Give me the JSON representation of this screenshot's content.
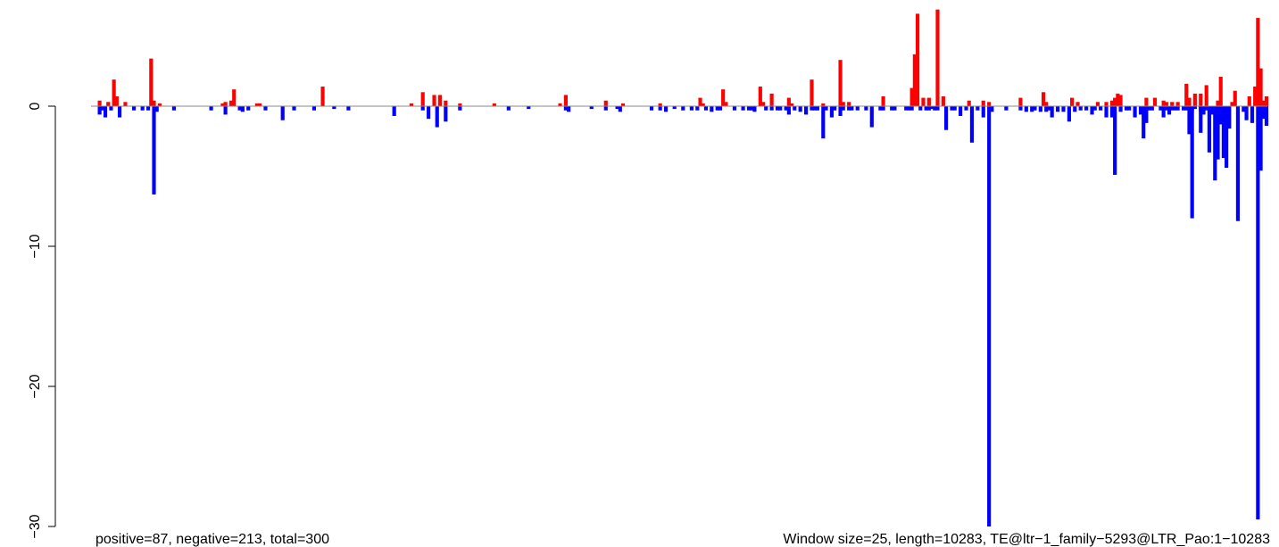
{
  "chart_data": {
    "type": "bar",
    "xlabel": "",
    "ylabel": "",
    "ylim": [
      -30,
      7
    ],
    "y_ticks": [
      {
        "value": 0,
        "label": "0"
      },
      {
        "value": -10,
        "label": "−10"
      },
      {
        "value": -20,
        "label": "−20"
      },
      {
        "value": -30,
        "label": "−30"
      }
    ],
    "grid": false,
    "legend": "none",
    "colors": {
      "positive": "#ff0000",
      "negative": "#0000ff",
      "baseline": "#888888"
    },
    "bottom_left_note": "positive=87, negative=213, total=300",
    "bottom_right_note": "Window size=25, length=10283, TE@ltr−1_family−5293@LTR_Pao:1−10283",
    "x_range": [
      0,
      10283
    ],
    "window_size": 25,
    "positive": [
      [
        75,
        0.4
      ],
      [
        150,
        0.3
      ],
      [
        200,
        1.9
      ],
      [
        225,
        0.7
      ],
      [
        300,
        0.3
      ],
      [
        525,
        3.4
      ],
      [
        550,
        0.4
      ],
      [
        600,
        0.2
      ],
      [
        1150,
        0.2
      ],
      [
        1175,
        0.3
      ],
      [
        1225,
        0.4
      ],
      [
        1250,
        1.2
      ],
      [
        1450,
        0.2
      ],
      [
        1475,
        0.2
      ],
      [
        2025,
        1.4
      ],
      [
        2800,
        0.2
      ],
      [
        2900,
        1.0
      ],
      [
        3000,
        0.8
      ],
      [
        3050,
        0.8
      ],
      [
        3100,
        0.4
      ],
      [
        3225,
        0.2
      ],
      [
        3525,
        0.2
      ],
      [
        4100,
        0.2
      ],
      [
        4150,
        0.8
      ],
      [
        4500,
        0.4
      ],
      [
        4650,
        0.2
      ],
      [
        4975,
        0.2
      ],
      [
        5325,
        0.6
      ],
      [
        5350,
        0.2
      ],
      [
        5525,
        1.2
      ],
      [
        5550,
        0.3
      ],
      [
        5850,
        1.4
      ],
      [
        5875,
        0.3
      ],
      [
        5950,
        0.9
      ],
      [
        6100,
        0.6
      ],
      [
        6125,
        0.2
      ],
      [
        6300,
        1.9
      ],
      [
        6400,
        0.2
      ],
      [
        6550,
        3.3
      ],
      [
        6575,
        0.3
      ],
      [
        6625,
        0.3
      ],
      [
        6925,
        0.7
      ],
      [
        7175,
        1.3
      ],
      [
        7200,
        3.7
      ],
      [
        7225,
        6.6
      ],
      [
        7275,
        0.6
      ],
      [
        7325,
        0.6
      ],
      [
        7400,
        6.9
      ],
      [
        7450,
        0.7
      ],
      [
        7675,
        0.4
      ],
      [
        7800,
        0.4
      ],
      [
        7850,
        0.3
      ],
      [
        8125,
        0.6
      ],
      [
        8325,
        1.0
      ],
      [
        8350,
        0.3
      ],
      [
        8575,
        0.6
      ],
      [
        8625,
        0.3
      ],
      [
        8800,
        0.3
      ],
      [
        8875,
        0.3
      ],
      [
        8925,
        0.4
      ],
      [
        8950,
        0.6
      ],
      [
        8975,
        0.9
      ],
      [
        9000,
        0.8
      ],
      [
        9225,
        0.6
      ],
      [
        9300,
        0.6
      ],
      [
        9375,
        0.4
      ],
      [
        9400,
        0.3
      ],
      [
        9450,
        0.3
      ],
      [
        9500,
        0.3
      ]
    ],
    "negative": [
      [
        75,
        -0.6
      ],
      [
        100,
        -0.3
      ],
      [
        125,
        -0.8
      ],
      [
        175,
        -0.3
      ],
      [
        250,
        -0.8
      ],
      [
        375,
        -0.3
      ],
      [
        450,
        -0.3
      ],
      [
        500,
        -0.3
      ],
      [
        550,
        -6.3
      ],
      [
        575,
        -0.4
      ],
      [
        725,
        -0.3
      ],
      [
        1050,
        -0.3
      ],
      [
        1175,
        -0.6
      ],
      [
        1300,
        -0.3
      ],
      [
        1325,
        -0.4
      ],
      [
        1375,
        -0.3
      ],
      [
        1525,
        -0.3
      ],
      [
        1675,
        -1.0
      ],
      [
        1775,
        -0.3
      ],
      [
        1950,
        -0.3
      ],
      [
        2125,
        -0.2
      ],
      [
        2250,
        -0.3
      ],
      [
        2650,
        -0.7
      ],
      [
        2900,
        -0.3
      ],
      [
        2950,
        -0.9
      ],
      [
        3025,
        -1.5
      ],
      [
        3100,
        -1.1
      ],
      [
        3225,
        -0.3
      ],
      [
        3650,
        -0.3
      ],
      [
        3825,
        -0.2
      ],
      [
        4150,
        -0.3
      ],
      [
        4175,
        -0.4
      ],
      [
        4375,
        -0.2
      ],
      [
        4500,
        -0.3
      ],
      [
        4600,
        -0.2
      ],
      [
        4625,
        -0.4
      ],
      [
        4900,
        -0.3
      ],
      [
        4975,
        -0.3
      ],
      [
        5025,
        -0.4
      ],
      [
        5100,
        -0.2
      ],
      [
        5175,
        -0.3
      ],
      [
        5250,
        -0.3
      ],
      [
        5300,
        -0.3
      ],
      [
        5375,
        -0.3
      ],
      [
        5425,
        -0.4
      ],
      [
        5475,
        -0.3
      ],
      [
        5500,
        -0.3
      ],
      [
        5625,
        -0.3
      ],
      [
        5700,
        -0.3
      ],
      [
        5750,
        -0.3
      ],
      [
        5775,
        -0.3
      ],
      [
        5800,
        -0.4
      ],
      [
        5900,
        -0.3
      ],
      [
        5950,
        -0.3
      ],
      [
        6000,
        -0.3
      ],
      [
        6025,
        -0.3
      ],
      [
        6075,
        -0.3
      ],
      [
        6100,
        -0.6
      ],
      [
        6150,
        -0.3
      ],
      [
        6200,
        -0.4
      ],
      [
        6250,
        -0.6
      ],
      [
        6300,
        -0.3
      ],
      [
        6325,
        -0.3
      ],
      [
        6350,
        -0.3
      ],
      [
        6400,
        -2.3
      ],
      [
        6425,
        -0.3
      ],
      [
        6475,
        -0.8
      ],
      [
        6500,
        -0.3
      ],
      [
        6550,
        -0.7
      ],
      [
        6575,
        -0.3
      ],
      [
        6625,
        -0.3
      ],
      [
        6650,
        -0.3
      ],
      [
        6700,
        -0.3
      ],
      [
        6775,
        -0.3
      ],
      [
        6825,
        -1.5
      ],
      [
        6900,
        -0.3
      ],
      [
        6925,
        -0.3
      ],
      [
        7000,
        -0.3
      ],
      [
        7025,
        -0.3
      ],
      [
        7125,
        -0.3
      ],
      [
        7150,
        -0.3
      ],
      [
        7175,
        -0.3
      ],
      [
        7250,
        -0.3
      ],
      [
        7300,
        -0.3
      ],
      [
        7325,
        -0.3
      ],
      [
        7350,
        -0.2
      ],
      [
        7375,
        -0.3
      ],
      [
        7400,
        -0.3
      ],
      [
        7475,
        -1.7
      ],
      [
        7525,
        -0.3
      ],
      [
        7550,
        -0.3
      ],
      [
        7600,
        -0.7
      ],
      [
        7650,
        -0.3
      ],
      [
        7700,
        -2.6
      ],
      [
        7750,
        -0.3
      ],
      [
        7800,
        -0.8
      ],
      [
        7850,
        -30.0
      ],
      [
        7875,
        -0.4
      ],
      [
        8000,
        -0.3
      ],
      [
        8125,
        -0.3
      ],
      [
        8175,
        -0.4
      ],
      [
        8225,
        -0.4
      ],
      [
        8250,
        -0.3
      ],
      [
        8300,
        -0.4
      ],
      [
        8350,
        -0.4
      ],
      [
        8375,
        -0.3
      ],
      [
        8400,
        -0.8
      ],
      [
        8450,
        -0.4
      ],
      [
        8500,
        -0.4
      ],
      [
        8550,
        -1.1
      ],
      [
        8600,
        -0.4
      ],
      [
        8650,
        -0.3
      ],
      [
        8700,
        -0.3
      ],
      [
        8750,
        -0.6
      ],
      [
        8775,
        -0.3
      ],
      [
        8825,
        -0.3
      ],
      [
        8875,
        -0.8
      ],
      [
        8925,
        -0.8
      ],
      [
        8950,
        -4.9
      ],
      [
        9000,
        -0.4
      ],
      [
        9050,
        -0.3
      ],
      [
        9075,
        -0.3
      ],
      [
        9125,
        -0.8
      ],
      [
        9175,
        -0.6
      ],
      [
        9200,
        -2.3
      ],
      [
        9225,
        -1.2
      ],
      [
        9250,
        -0.3
      ],
      [
        9275,
        -0.3
      ],
      [
        9350,
        -0.3
      ],
      [
        9375,
        -0.8
      ],
      [
        9400,
        -0.3
      ],
      [
        9425,
        -0.6
      ],
      [
        9450,
        -0.3
      ],
      [
        9475,
        -0.3
      ],
      [
        9500,
        -0.3
      ],
      [
        9550,
        -0.3
      ]
    ],
    "extra_negative_right": [
      [
        9575,
        -0.3
      ],
      [
        9625,
        -0.3
      ],
      [
        9650,
        -0.2
      ],
      [
        9700,
        -0.4
      ],
      [
        9750,
        -0.3
      ],
      [
        9775,
        -0.3
      ],
      [
        9800,
        -0.3
      ],
      [
        9850,
        -0.3
      ],
      [
        9900,
        -0.3
      ],
      [
        9925,
        -0.3
      ]
    ]
  },
  "labels": {
    "bottom_left": "positive=87, negative=213, total=300",
    "bottom_right": "Window size=25, length=10283, TE@ltr−1_family−5293@LTR_Pao:1−10283"
  }
}
